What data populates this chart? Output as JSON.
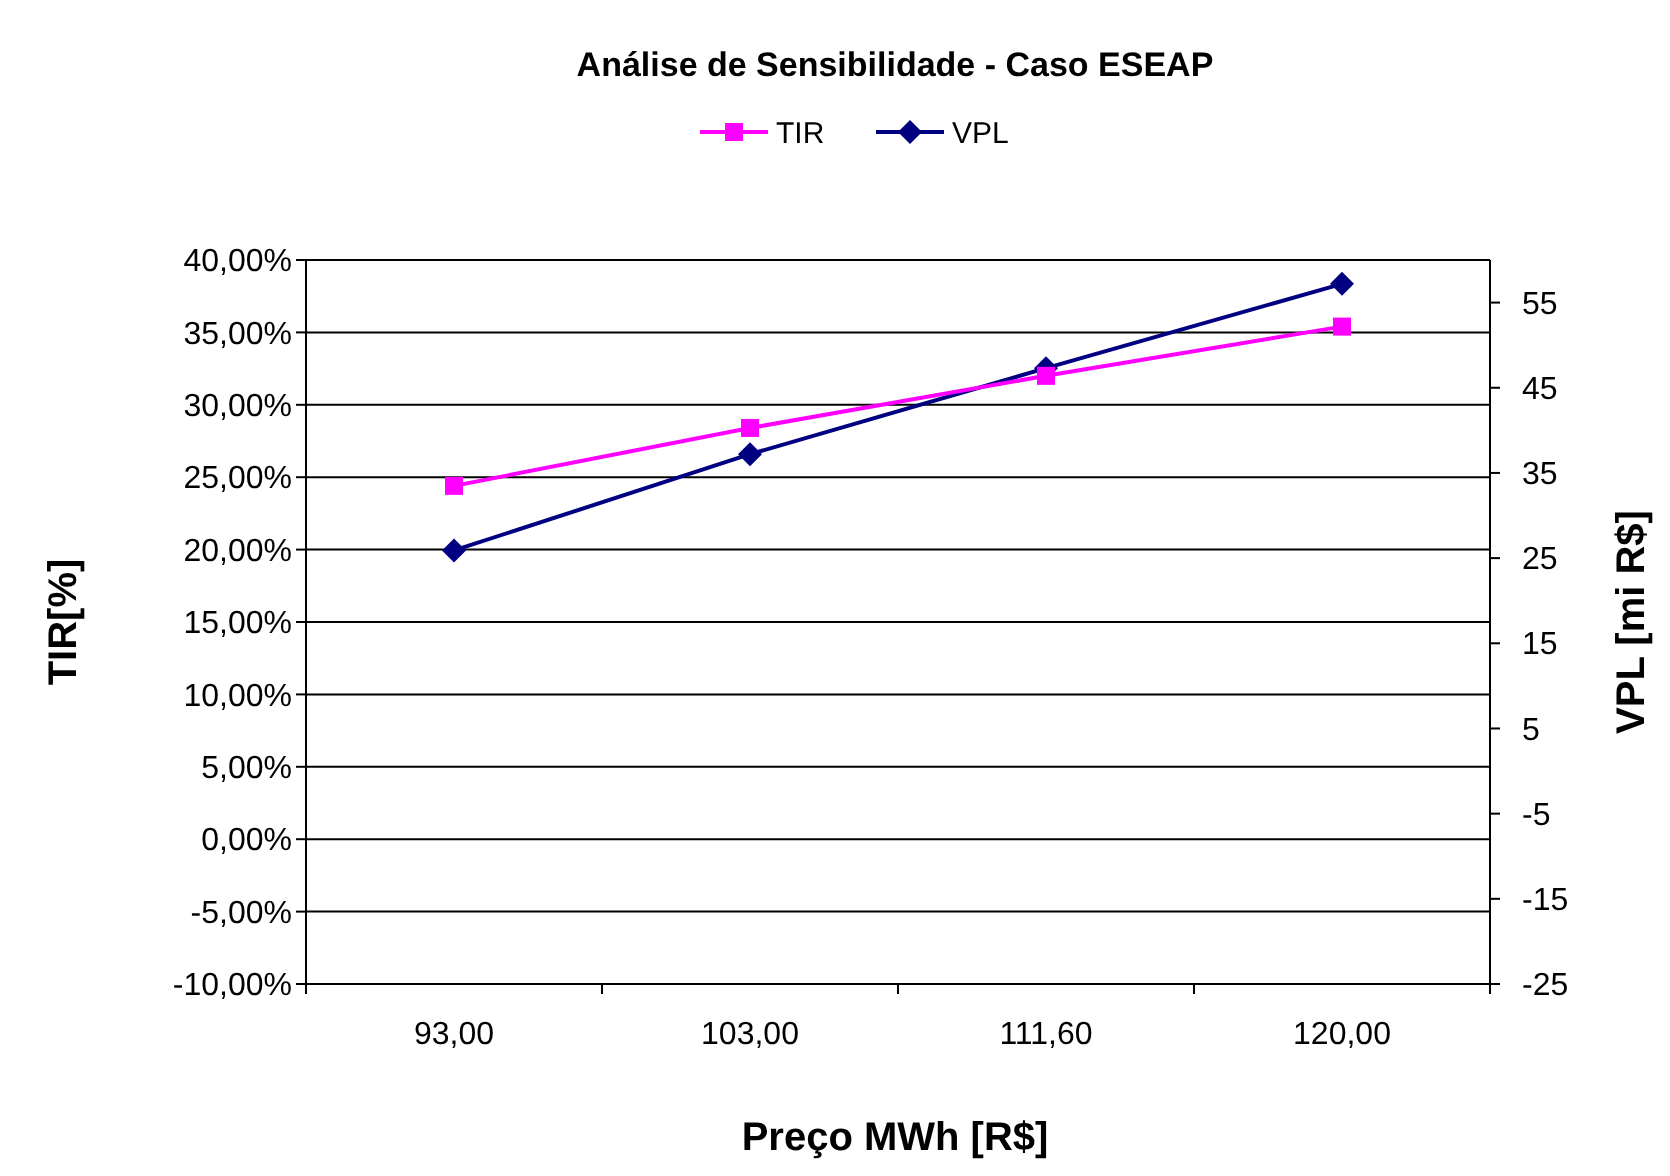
{
  "chart_data": {
    "type": "line",
    "title": "Análise de Sensibilidade - Caso ESEAP",
    "xlabel": "Preço  MWh [R$]",
    "ylabel": "TIR[%]",
    "y2label": "VPL [mi R$]",
    "categories": [
      "93,00",
      "103,00",
      "111,60",
      "120,00"
    ],
    "series": [
      {
        "name": "TIR",
        "color": "#ff00ff",
        "marker": "square",
        "values": [
          24.4,
          28.4,
          32.0,
          35.4
        ]
      },
      {
        "name": "VPL",
        "color": "#000080",
        "marker": "diamond",
        "axis": "y2",
        "values": [
          25.9,
          37.2,
          47.3,
          57.2
        ]
      }
    ],
    "ylim": [
      -10,
      40
    ],
    "yticks": [
      {
        "value": -10,
        "label": "-10,00%"
      },
      {
        "value": -5,
        "label": "-5,00%"
      },
      {
        "value": 0,
        "label": "0,00%"
      },
      {
        "value": 5,
        "label": "5,00%"
      },
      {
        "value": 10,
        "label": "10,00%"
      },
      {
        "value": 15,
        "label": "15,00%"
      },
      {
        "value": 20,
        "label": "20,00%"
      },
      {
        "value": 25,
        "label": "25,00%"
      },
      {
        "value": 30,
        "label": "30,00%"
      },
      {
        "value": 35,
        "label": "35,00%"
      },
      {
        "value": 40,
        "label": "40,00%"
      }
    ],
    "y2lim": [
      -25,
      60
    ],
    "y2ticks": [
      -25,
      -15,
      -5,
      5,
      15,
      25,
      35,
      45,
      55
    ],
    "grid": "y",
    "legend": "top"
  }
}
